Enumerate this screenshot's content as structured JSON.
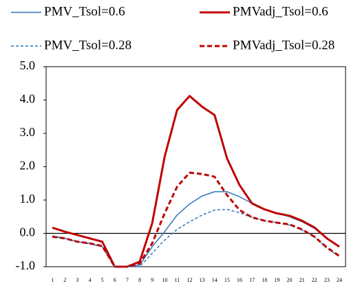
{
  "chart_data": {
    "type": "line",
    "categories": [
      "1",
      "2",
      "3",
      "4",
      "5",
      "6",
      "7",
      "8",
      "9",
      "10",
      "11",
      "12",
      "13",
      "14",
      "15",
      "16",
      "17",
      "18",
      "19",
      "20",
      "21",
      "22",
      "23",
      "24"
    ],
    "series": [
      {
        "name": "PMV_Tsol=0.6",
        "color": "#2e75b6",
        "dash": false,
        "values": [
          -0.08,
          -0.15,
          -0.25,
          -0.3,
          -0.4,
          -1.0,
          -1.0,
          -0.95,
          -0.4,
          0.05,
          0.55,
          0.88,
          1.12,
          1.25,
          1.25,
          1.1,
          0.9,
          0.72,
          0.6,
          0.5,
          0.35,
          0.15,
          -0.15,
          -0.4
        ]
      },
      {
        "name": "PMVadj_Tsol=0.6",
        "color": "#c00000",
        "dash": false,
        "values": [
          0.17,
          0.05,
          -0.05,
          -0.15,
          -0.25,
          -1.0,
          -1.0,
          -0.85,
          0.3,
          2.3,
          3.7,
          4.12,
          3.8,
          3.55,
          2.25,
          1.45,
          0.9,
          0.72,
          0.6,
          0.53,
          0.38,
          0.18,
          -0.15,
          -0.4
        ]
      },
      {
        "name": "PMV_Tsol=0.28",
        "color": "#2e75b6",
        "dash": true,
        "values": [
          -0.1,
          -0.15,
          -0.25,
          -0.32,
          -0.4,
          -1.0,
          -1.0,
          -1.0,
          -0.6,
          -0.2,
          0.12,
          0.35,
          0.55,
          0.7,
          0.72,
          0.62,
          0.48,
          0.38,
          0.32,
          0.25,
          0.1,
          -0.1,
          -0.45,
          -0.7
        ]
      },
      {
        "name": "PMVadj_Tsol=0.28",
        "color": "#c00000",
        "dash": true,
        "values": [
          -0.1,
          -0.15,
          -0.25,
          -0.3,
          -0.38,
          -1.0,
          -1.0,
          -0.9,
          -0.3,
          0.6,
          1.4,
          1.82,
          1.78,
          1.7,
          1.15,
          0.7,
          0.48,
          0.38,
          0.32,
          0.27,
          0.12,
          -0.1,
          -0.42,
          -0.68
        ]
      }
    ],
    "ylim": [
      -1,
      5
    ],
    "yticks": [
      {
        "value": -1,
        "label": "-1.0"
      },
      {
        "value": 0,
        "label": "0.0"
      },
      {
        "value": 1,
        "label": "1.0"
      },
      {
        "value": 2,
        "label": "2.0"
      },
      {
        "value": 3,
        "label": "3.0"
      },
      {
        "value": 4,
        "label": "4.0"
      },
      {
        "value": 5,
        "label": "5.0"
      }
    ],
    "grid": false
  }
}
